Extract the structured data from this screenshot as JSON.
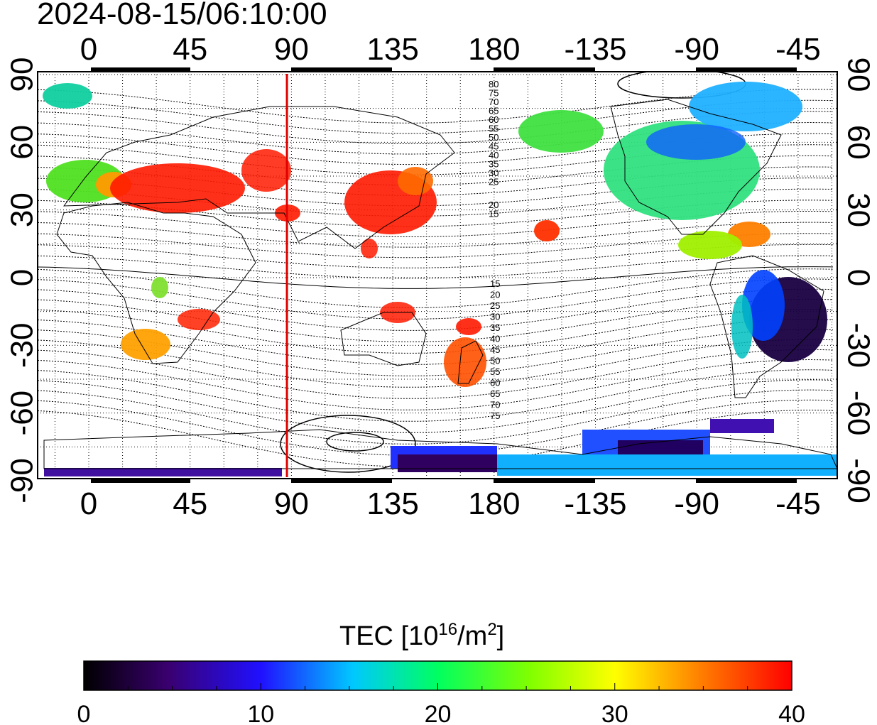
{
  "title": "2024-08-15/06:10:00",
  "map": {
    "lon_ticks": [
      "0",
      "45",
      "90",
      "135",
      "180",
      "-135",
      "-90",
      "-45"
    ],
    "lat_ticks": [
      "90",
      "60",
      "30",
      "0",
      "-30",
      "-60",
      "-90"
    ],
    "contour_labels_north": [
      "80",
      "75",
      "70",
      "65",
      "60",
      "55",
      "50",
      "45",
      "40",
      "35",
      "30",
      "25",
      "20",
      "15"
    ],
    "contour_labels_south": [
      "15",
      "20",
      "25",
      "30",
      "35",
      "40",
      "45",
      "50",
      "55",
      "60",
      "65",
      "70",
      "75"
    ],
    "marker_line_lon": 88,
    "marker_color": "#e00000"
  },
  "colorbar": {
    "title_prefix": "TEC  [10",
    "title_sup1": "16",
    "title_mid": "/m",
    "title_sup2": "2",
    "title_suffix": "]",
    "tick_labels": [
      "0",
      "10",
      "20",
      "30",
      "40"
    ],
    "min": 0,
    "max": 40
  }
}
